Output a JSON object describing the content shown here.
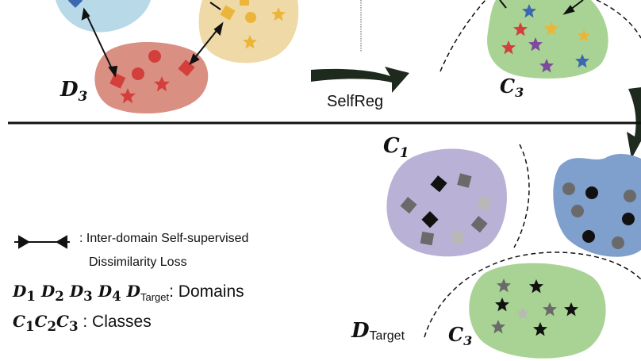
{
  "top": {
    "labels": {
      "d3": "D",
      "d3_sub": "3",
      "c3": "C",
      "c3_sub": "3"
    },
    "arrow_label": "SelfReg"
  },
  "bottom": {
    "labels": {
      "c1": "C",
      "c1_sub": "1",
      "c3": "C",
      "c3_sub": "3",
      "dtarget": "D",
      "dtarget_sub": "Target"
    }
  },
  "legend": {
    "loss_line1": ": Inter-domain Self-supervised",
    "loss_line2": "Dissimilarity Loss",
    "domains": [
      {
        "letter": "D",
        "sub": "1"
      },
      {
        "letter": "D",
        "sub": "2"
      },
      {
        "letter": "D",
        "sub": "3"
      },
      {
        "letter": "D",
        "sub": "4"
      }
    ],
    "domain_target_letter": "D",
    "domain_target_sub": "Target",
    "domains_text": ": Domains",
    "classes": [
      {
        "letter": "C",
        "sub": "1"
      },
      {
        "letter": "C",
        "sub": "2"
      },
      {
        "letter": "C",
        "sub": "3"
      }
    ],
    "classes_text": " : Classes"
  },
  "colors": {
    "blue_blob": "#b8d9e8",
    "red_blob": "#d98f82",
    "yellow_blob": "#efd9a6",
    "green_blob": "#a9d394",
    "purple_blob": "#b9b2d6",
    "steel_blob": "#7f9fcd",
    "arrow": "#1e2a1e",
    "marker_red": "#d33f3b",
    "marker_yellow": "#eab53a"
  }
}
